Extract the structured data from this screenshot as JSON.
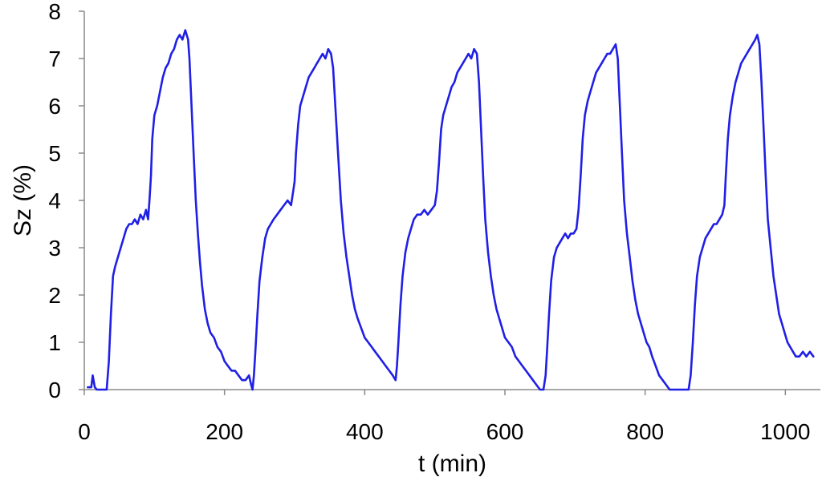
{
  "chart_data": {
    "type": "line",
    "title": "",
    "xlabel": "t (min)",
    "ylabel": "Sz (%)",
    "xlim": [
      0,
      1050
    ],
    "ylim": [
      0,
      8
    ],
    "xticks": [
      0,
      200,
      400,
      600,
      800,
      1000
    ],
    "yticks": [
      0,
      1,
      2,
      3,
      4,
      5,
      6,
      7,
      8
    ],
    "grid": false,
    "legend": "none",
    "series": [
      {
        "color": "#1f1fe6",
        "points": [
          [
            5,
            0.05
          ],
          [
            10,
            0.05
          ],
          [
            12,
            0.3
          ],
          [
            15,
            0.05
          ],
          [
            18,
            0
          ],
          [
            25,
            0
          ],
          [
            32,
            0
          ],
          [
            35,
            0.6
          ],
          [
            38,
            1.6
          ],
          [
            41,
            2.4
          ],
          [
            44,
            2.6
          ],
          [
            48,
            2.8
          ],
          [
            52,
            3.0
          ],
          [
            56,
            3.2
          ],
          [
            60,
            3.4
          ],
          [
            64,
            3.5
          ],
          [
            68,
            3.5
          ],
          [
            72,
            3.6
          ],
          [
            76,
            3.5
          ],
          [
            80,
            3.7
          ],
          [
            84,
            3.6
          ],
          [
            88,
            3.8
          ],
          [
            91,
            3.6
          ],
          [
            93,
            4.0
          ],
          [
            95,
            4.5
          ],
          [
            97,
            5.3
          ],
          [
            100,
            5.8
          ],
          [
            104,
            6.0
          ],
          [
            108,
            6.3
          ],
          [
            112,
            6.6
          ],
          [
            116,
            6.8
          ],
          [
            120,
            6.9
          ],
          [
            124,
            7.1
          ],
          [
            128,
            7.2
          ],
          [
            132,
            7.4
          ],
          [
            136,
            7.5
          ],
          [
            140,
            7.4
          ],
          [
            144,
            7.6
          ],
          [
            148,
            7.4
          ],
          [
            150,
            7.0
          ],
          [
            153,
            6.0
          ],
          [
            156,
            5.0
          ],
          [
            159,
            4.0
          ],
          [
            162,
            3.3
          ],
          [
            165,
            2.7
          ],
          [
            168,
            2.2
          ],
          [
            172,
            1.7
          ],
          [
            176,
            1.4
          ],
          [
            180,
            1.2
          ],
          [
            185,
            1.1
          ],
          [
            190,
            0.9
          ],
          [
            195,
            0.8
          ],
          [
            200,
            0.6
          ],
          [
            205,
            0.5
          ],
          [
            210,
            0.4
          ],
          [
            215,
            0.4
          ],
          [
            220,
            0.3
          ],
          [
            225,
            0.2
          ],
          [
            230,
            0.2
          ],
          [
            235,
            0.3
          ],
          [
            238,
            0.1
          ],
          [
            240,
            0.0
          ],
          [
            242,
            0.3
          ],
          [
            244,
            0.8
          ],
          [
            247,
            1.6
          ],
          [
            250,
            2.3
          ],
          [
            254,
            2.8
          ],
          [
            258,
            3.2
          ],
          [
            262,
            3.4
          ],
          [
            266,
            3.5
          ],
          [
            270,
            3.6
          ],
          [
            275,
            3.7
          ],
          [
            280,
            3.8
          ],
          [
            285,
            3.9
          ],
          [
            290,
            4.0
          ],
          [
            295,
            3.9
          ],
          [
            298,
            4.2
          ],
          [
            300,
            4.4
          ],
          [
            302,
            5.0
          ],
          [
            305,
            5.6
          ],
          [
            308,
            6.0
          ],
          [
            312,
            6.2
          ],
          [
            316,
            6.4
          ],
          [
            320,
            6.6
          ],
          [
            324,
            6.7
          ],
          [
            328,
            6.8
          ],
          [
            332,
            6.9
          ],
          [
            336,
            7.0
          ],
          [
            340,
            7.1
          ],
          [
            344,
            7.0
          ],
          [
            348,
            7.2
          ],
          [
            352,
            7.1
          ],
          [
            355,
            6.8
          ],
          [
            358,
            6.0
          ],
          [
            362,
            5.0
          ],
          [
            366,
            4.0
          ],
          [
            370,
            3.3
          ],
          [
            374,
            2.8
          ],
          [
            378,
            2.4
          ],
          [
            382,
            2.0
          ],
          [
            386,
            1.7
          ],
          [
            390,
            1.5
          ],
          [
            395,
            1.3
          ],
          [
            400,
            1.1
          ],
          [
            405,
            1.0
          ],
          [
            410,
            0.9
          ],
          [
            415,
            0.8
          ],
          [
            420,
            0.7
          ],
          [
            425,
            0.6
          ],
          [
            430,
            0.5
          ],
          [
            435,
            0.4
          ],
          [
            440,
            0.3
          ],
          [
            444,
            0.2
          ],
          [
            446,
            0.5
          ],
          [
            448,
            1.0
          ],
          [
            451,
            1.8
          ],
          [
            454,
            2.4
          ],
          [
            458,
            2.9
          ],
          [
            462,
            3.2
          ],
          [
            466,
            3.4
          ],
          [
            470,
            3.6
          ],
          [
            475,
            3.7
          ],
          [
            480,
            3.7
          ],
          [
            485,
            3.8
          ],
          [
            490,
            3.7
          ],
          [
            495,
            3.8
          ],
          [
            500,
            3.9
          ],
          [
            503,
            4.2
          ],
          [
            506,
            4.8
          ],
          [
            509,
            5.5
          ],
          [
            512,
            5.8
          ],
          [
            516,
            6.0
          ],
          [
            520,
            6.2
          ],
          [
            524,
            6.4
          ],
          [
            528,
            6.5
          ],
          [
            532,
            6.7
          ],
          [
            536,
            6.8
          ],
          [
            540,
            6.9
          ],
          [
            544,
            7.0
          ],
          [
            548,
            7.1
          ],
          [
            552,
            7.0
          ],
          [
            556,
            7.2
          ],
          [
            560,
            7.1
          ],
          [
            563,
            6.5
          ],
          [
            566,
            5.5
          ],
          [
            569,
            4.5
          ],
          [
            572,
            3.6
          ],
          [
            576,
            2.9
          ],
          [
            580,
            2.4
          ],
          [
            584,
            2.0
          ],
          [
            588,
            1.7
          ],
          [
            592,
            1.5
          ],
          [
            596,
            1.3
          ],
          [
            600,
            1.1
          ],
          [
            605,
            1.0
          ],
          [
            610,
            0.9
          ],
          [
            615,
            0.7
          ],
          [
            620,
            0.6
          ],
          [
            625,
            0.5
          ],
          [
            630,
            0.4
          ],
          [
            635,
            0.3
          ],
          [
            640,
            0.2
          ],
          [
            645,
            0.1
          ],
          [
            650,
            0
          ],
          [
            655,
            0
          ],
          [
            658,
            0.3
          ],
          [
            660,
            0.8
          ],
          [
            663,
            1.6
          ],
          [
            666,
            2.3
          ],
          [
            670,
            2.8
          ],
          [
            674,
            3.0
          ],
          [
            678,
            3.1
          ],
          [
            682,
            3.2
          ],
          [
            686,
            3.3
          ],
          [
            690,
            3.2
          ],
          [
            694,
            3.3
          ],
          [
            698,
            3.3
          ],
          [
            702,
            3.4
          ],
          [
            705,
            3.8
          ],
          [
            708,
            4.5
          ],
          [
            711,
            5.3
          ],
          [
            714,
            5.8
          ],
          [
            718,
            6.1
          ],
          [
            722,
            6.3
          ],
          [
            726,
            6.5
          ],
          [
            730,
            6.7
          ],
          [
            734,
            6.8
          ],
          [
            738,
            6.9
          ],
          [
            742,
            7.0
          ],
          [
            746,
            7.1
          ],
          [
            750,
            7.1
          ],
          [
            754,
            7.2
          ],
          [
            758,
            7.3
          ],
          [
            761,
            7.0
          ],
          [
            764,
            6.0
          ],
          [
            767,
            5.0
          ],
          [
            770,
            4.0
          ],
          [
            774,
            3.3
          ],
          [
            778,
            2.8
          ],
          [
            782,
            2.3
          ],
          [
            786,
            1.9
          ],
          [
            790,
            1.6
          ],
          [
            794,
            1.4
          ],
          [
            798,
            1.2
          ],
          [
            802,
            1.0
          ],
          [
            806,
            0.9
          ],
          [
            810,
            0.7
          ],
          [
            815,
            0.5
          ],
          [
            820,
            0.3
          ],
          [
            825,
            0.2
          ],
          [
            830,
            0.1
          ],
          [
            835,
            0
          ],
          [
            845,
            0
          ],
          [
            855,
            0
          ],
          [
            862,
            0
          ],
          [
            865,
            0.3
          ],
          [
            868,
            1.0
          ],
          [
            871,
            1.8
          ],
          [
            874,
            2.4
          ],
          [
            878,
            2.8
          ],
          [
            882,
            3.0
          ],
          [
            886,
            3.2
          ],
          [
            890,
            3.3
          ],
          [
            894,
            3.4
          ],
          [
            898,
            3.5
          ],
          [
            902,
            3.5
          ],
          [
            906,
            3.6
          ],
          [
            910,
            3.7
          ],
          [
            913,
            3.9
          ],
          [
            915,
            4.5
          ],
          [
            918,
            5.3
          ],
          [
            921,
            5.8
          ],
          [
            925,
            6.2
          ],
          [
            929,
            6.5
          ],
          [
            933,
            6.7
          ],
          [
            937,
            6.9
          ],
          [
            941,
            7.0
          ],
          [
            945,
            7.1
          ],
          [
            949,
            7.2
          ],
          [
            953,
            7.3
          ],
          [
            957,
            7.4
          ],
          [
            960,
            7.5
          ],
          [
            963,
            7.3
          ],
          [
            966,
            6.5
          ],
          [
            969,
            5.5
          ],
          [
            972,
            4.5
          ],
          [
            975,
            3.6
          ],
          [
            979,
            3.0
          ],
          [
            983,
            2.4
          ],
          [
            987,
            2.0
          ],
          [
            991,
            1.6
          ],
          [
            995,
            1.4
          ],
          [
            999,
            1.2
          ],
          [
            1003,
            1.0
          ],
          [
            1007,
            0.9
          ],
          [
            1011,
            0.8
          ],
          [
            1015,
            0.7
          ],
          [
            1020,
            0.7
          ],
          [
            1025,
            0.8
          ],
          [
            1030,
            0.7
          ],
          [
            1035,
            0.8
          ],
          [
            1040,
            0.7
          ]
        ]
      }
    ]
  }
}
